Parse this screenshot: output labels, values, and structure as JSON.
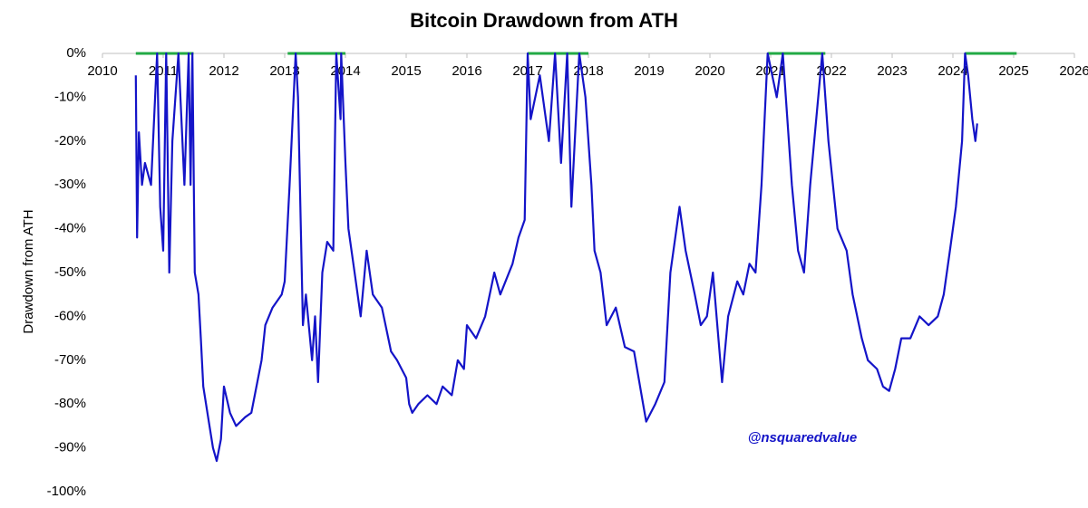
{
  "chart_data": {
    "type": "line",
    "title": "Bitcoin Drawdown from ATH",
    "y_label": "Drawdown from ATH",
    "annotation": "@nsquaredvalue",
    "xlim": [
      2010,
      2026
    ],
    "xticks": [
      2010,
      2011,
      2012,
      2013,
      2014,
      2015,
      2016,
      2017,
      2018,
      2019,
      2020,
      2021,
      2022,
      2023,
      2024,
      2025,
      2026
    ],
    "ylim": [
      -100,
      0
    ],
    "yticks": [
      {
        "value": 0,
        "label": "0%"
      },
      {
        "value": -10,
        "label": "-10%"
      },
      {
        "value": -20,
        "label": "-20%"
      },
      {
        "value": -30,
        "label": "-30%"
      },
      {
        "value": -40,
        "label": "-40%"
      },
      {
        "value": -50,
        "label": "-50%"
      },
      {
        "value": -60,
        "label": "-60%"
      },
      {
        "value": -70,
        "label": "-70%"
      },
      {
        "value": -80,
        "label": "-80%"
      },
      {
        "value": -90,
        "label": "-90%"
      },
      {
        "value": -100,
        "label": "-100%"
      }
    ],
    "series": [
      {
        "color": "#1414c8",
        "x": [
          2010.55,
          2010.57,
          2010.6,
          2010.65,
          2010.7,
          2010.8,
          2010.9,
          2010.95,
          2011.0,
          2011.05,
          2011.1,
          2011.15,
          2011.25,
          2011.35,
          2011.42,
          2011.45,
          2011.48,
          2011.52,
          2011.58,
          2011.62,
          2011.66,
          2011.75,
          2011.82,
          2011.88,
          2011.95,
          2012.0,
          2012.1,
          2012.2,
          2012.35,
          2012.45,
          2012.55,
          2012.62,
          2012.68,
          2012.8,
          2012.95,
          2013.0,
          2013.08,
          2013.18,
          2013.22,
          2013.3,
          2013.35,
          2013.45,
          2013.5,
          2013.55,
          2013.62,
          2013.7,
          2013.8,
          2013.85,
          2013.92,
          2013.93,
          2014.0,
          2014.05,
          2014.15,
          2014.25,
          2014.35,
          2014.45,
          2014.6,
          2014.75,
          2014.85,
          2015.0,
          2015.05,
          2015.1,
          2015.2,
          2015.35,
          2015.5,
          2015.6,
          2015.75,
          2015.85,
          2015.95,
          2016.0,
          2016.15,
          2016.3,
          2016.45,
          2016.55,
          2016.75,
          2016.85,
          2016.95,
          2017.0,
          2017.05,
          2017.2,
          2017.35,
          2017.45,
          2017.55,
          2017.65,
          2017.72,
          2017.85,
          2017.95,
          2018.05,
          2018.1,
          2018.2,
          2018.3,
          2018.45,
          2018.6,
          2018.75,
          2018.9,
          2018.95,
          2019.1,
          2019.25,
          2019.35,
          2019.5,
          2019.6,
          2019.75,
          2019.85,
          2019.95,
          2020.05,
          2020.2,
          2020.3,
          2020.45,
          2020.55,
          2020.65,
          2020.75,
          2020.85,
          2020.95,
          2021.1,
          2021.2,
          2021.35,
          2021.45,
          2021.55,
          2021.65,
          2021.85,
          2021.95,
          2022.1,
          2022.25,
          2022.35,
          2022.5,
          2022.6,
          2022.75,
          2022.85,
          2022.95,
          2023.05,
          2023.15,
          2023.3,
          2023.45,
          2023.6,
          2023.75,
          2023.85,
          2023.95,
          2024.05,
          2024.15,
          2024.2,
          2024.25,
          2024.32,
          2024.37,
          2024.4
        ],
        "values": [
          -5,
          -42,
          -18,
          -30,
          -25,
          -30,
          0,
          -35,
          -45,
          0,
          -50,
          -20,
          0,
          -30,
          0,
          -30,
          0,
          -50,
          -55,
          -65,
          -76,
          -84,
          -90,
          -93,
          -88,
          -76,
          -82,
          -85,
          -83,
          -82,
          -75,
          -70,
          -62,
          -58,
          -55,
          -52,
          -30,
          0,
          -10,
          -62,
          -55,
          -70,
          -60,
          -75,
          -50,
          -43,
          -45,
          0,
          -15,
          0,
          -25,
          -40,
          -50,
          -60,
          -45,
          -55,
          -58,
          -68,
          -70,
          -74,
          -80,
          -82,
          -80,
          -78,
          -80,
          -76,
          -78,
          -70,
          -72,
          -62,
          -65,
          -60,
          -50,
          -55,
          -48,
          -42,
          -38,
          0,
          -15,
          -5,
          -20,
          0,
          -25,
          0,
          -35,
          0,
          -10,
          -30,
          -45,
          -50,
          -62,
          -58,
          -67,
          -68,
          -80,
          -84,
          -80,
          -75,
          -50,
          -35,
          -45,
          -55,
          -62,
          -60,
          -50,
          -75,
          -60,
          -52,
          -55,
          -48,
          -50,
          -30,
          0,
          -10,
          0,
          -30,
          -45,
          -50,
          -30,
          0,
          -20,
          -40,
          -45,
          -55,
          -65,
          -70,
          -72,
          -76,
          -77,
          -72,
          -65,
          -65,
          -60,
          -62,
          -60,
          -55,
          -45,
          -35,
          -20,
          0,
          -5,
          -15,
          -20,
          -16
        ]
      },
      {
        "color": "#22aa44",
        "x": [
          2010.55,
          2011.5,
          null,
          2013.05,
          2014.0,
          null,
          2017.0,
          2018.0,
          null,
          2020.95,
          2021.9,
          null,
          2024.2,
          2025.05
        ],
        "values": [
          0,
          0,
          null,
          0,
          0,
          null,
          0,
          0,
          null,
          0,
          0,
          null,
          0,
          0
        ]
      }
    ]
  }
}
